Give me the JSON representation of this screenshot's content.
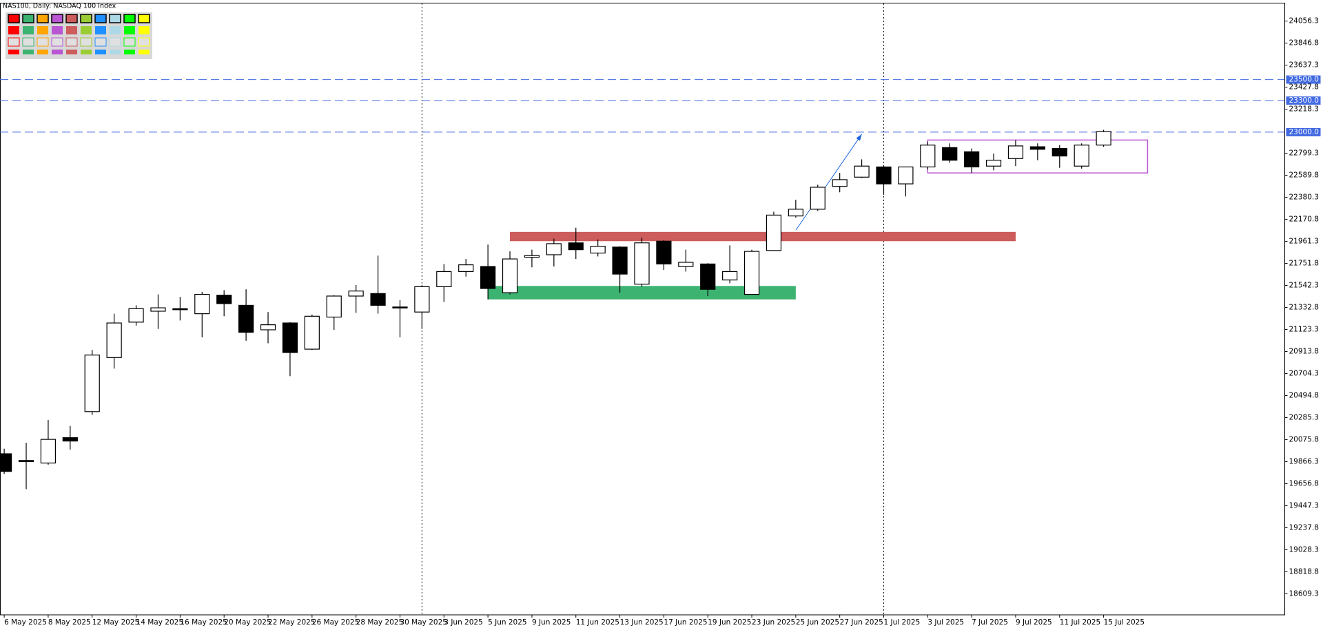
{
  "chart_data": {
    "type": "candlestick",
    "title": "NAS100, Daily:  NASDAQ 100 Index",
    "categories": [
      "6 May 2025",
      null,
      "8 May 2025",
      null,
      "12 May 2025",
      null,
      "14 May 2025",
      null,
      "16 May 2025",
      null,
      "20 May 2025",
      null,
      "22 May 2025",
      null,
      "26 May 2025",
      null,
      "28 May 2025",
      null,
      "30 May 2025",
      null,
      "3 Jun 2025",
      null,
      "5 Jun 2025",
      null,
      "9 Jun 2025",
      null,
      "11 Jun 2025",
      null,
      "13 Jun 2025",
      null,
      "17 Jun 2025",
      null,
      "19 Jun 2025",
      null,
      "23 Jun 2025",
      null,
      "25 Jun 2025",
      null,
      "27 Jun 2025",
      null,
      "1 Jul 2025",
      null,
      "3 Jul 2025",
      null,
      "7 Jul 2025",
      null,
      "9 Jul 2025",
      null,
      "11 Jul 2025",
      null,
      "15 Jul 2025"
    ],
    "open": [
      19941,
      19877,
      19853,
      20094,
      20342,
      20856,
      21193,
      21297,
      21321,
      21273,
      21449,
      21353,
      21120,
      21185,
      20936,
      21241,
      21441,
      21465,
      21337,
      21289,
      21530,
      21674,
      21722,
      21473,
      21810,
      21834,
      21947,
      21850,
      21907,
      21554,
      21963,
      21722,
      21746,
      21594,
      21457,
      21874,
      22203,
      22267,
      22484,
      22572,
      22669,
      22508,
      22669,
      22853,
      22813,
      22677,
      22749,
      22861,
      22845,
      22677,
      22877
    ],
    "high": [
      19989,
      20046,
      20262,
      20206,
      20928,
      21273,
      21353,
      21457,
      21433,
      21481,
      21497,
      21505,
      21289,
      21193,
      21265,
      21449,
      21546,
      21826,
      21401,
      21546,
      21746,
      21794,
      21931,
      21866,
      21882,
      21987,
      22091,
      21979,
      21915,
      21995,
      21971,
      21882,
      21754,
      21923,
      21882,
      22243,
      22356,
      22500,
      22612,
      22741,
      22685,
      22669,
      22909,
      22893,
      22845,
      22797,
      22925,
      22893,
      22877,
      22893,
      23022
    ],
    "low": [
      19749,
      19604,
      19837,
      19981,
      20310,
      20751,
      21160,
      21128,
      21209,
      21048,
      21249,
      21016,
      20992,
      20679,
      20928,
      21120,
      21281,
      21273,
      21048,
      21128,
      21385,
      21626,
      21409,
      21457,
      21714,
      21722,
      21794,
      21818,
      21473,
      21530,
      21690,
      21674,
      21441,
      21562,
      21457,
      21874,
      22187,
      22251,
      22428,
      22564,
      22404,
      22388,
      22645,
      22709,
      22612,
      22637,
      22677,
      22733,
      22661,
      22653,
      22861
    ],
    "close": [
      19773,
      19869,
      20078,
      20062,
      20880,
      21185,
      21321,
      21329,
      21313,
      21457,
      21369,
      21096,
      21168,
      20904,
      21249,
      21441,
      21489,
      21353,
      21329,
      21530,
      21674,
      21738,
      21513,
      21794,
      21826,
      21939,
      21882,
      21915,
      21650,
      21947,
      21746,
      21762,
      21505,
      21674,
      21866,
      22211,
      22267,
      22476,
      22548,
      22677,
      22508,
      22669,
      22877,
      22733,
      22669,
      22733,
      22869,
      22837,
      22773,
      22877,
      23005
    ],
    "up_color": "#ffffff",
    "down_color": "#000000",
    "ylim": [
      18408.8,
      24224.8
    ],
    "yticks": [
      18609.3,
      18818.8,
      19028.3,
      19237.8,
      19447.3,
      19656.8,
      19866.3,
      20075.8,
      20285.3,
      20494.8,
      20704.3,
      20913.8,
      21123.3,
      21332.8,
      21542.3,
      21751.8,
      21961.3,
      22170.8,
      22380.3,
      22589.8,
      22799.3,
      23218.3,
      23427.8,
      23637.3,
      23846.8,
      24056.3
    ],
    "hlines": [
      {
        "value": 23500,
        "label": "23500.0"
      },
      {
        "value": 23300,
        "label": "23300.0"
      },
      {
        "value": 23000,
        "label": "23000.0"
      }
    ],
    "hline_color": "#4169e1",
    "zones": [
      {
        "color": "#cd5c5c",
        "x": [
          23,
          46
        ],
        "y": [
          21963,
          22051
        ]
      },
      {
        "color": "#3cb371",
        "x": [
          22,
          36
        ],
        "y": [
          21409,
          21537
        ]
      }
    ],
    "boxes": [
      {
        "color": "#ba55d3",
        "x": [
          42,
          52
        ],
        "y": [
          22612,
          22925
        ]
      }
    ],
    "arrows": [
      {
        "color": "#1e64dc",
        "x": [
          36,
          39
        ],
        "y": [
          22067,
          22981
        ]
      }
    ]
  }
}
